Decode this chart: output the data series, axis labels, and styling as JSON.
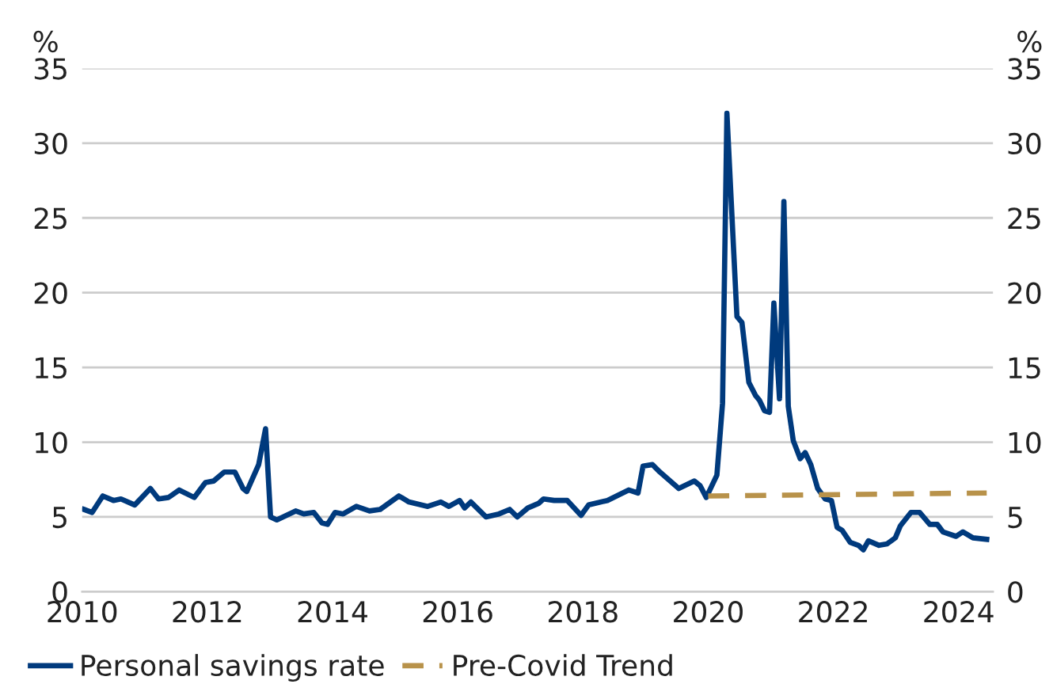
{
  "chart_data": {
    "type": "line",
    "ylabel": "%",
    "y2label": "%",
    "xlim": [
      2010,
      2024.55
    ],
    "xticks": [
      2010,
      2012,
      2014,
      2016,
      2018,
      2020,
      2022,
      2024
    ],
    "ylim": [
      0,
      35
    ],
    "yticks": [
      0,
      5,
      10,
      15,
      20,
      25,
      30,
      35
    ],
    "y2lim": [
      0,
      35
    ],
    "y2ticks": [
      0,
      5,
      10,
      15,
      20,
      25,
      30,
      35
    ],
    "grid": "y",
    "legend": "bottom left",
    "series": [
      {
        "name": "Personal savings rate",
        "color": "#003a7d",
        "line_style": "solid",
        "x": [
          2010.03,
          2010.16,
          2010.33,
          2010.5,
          2010.62,
          2010.84,
          2011.09,
          2011.22,
          2011.38,
          2011.55,
          2011.79,
          2011.97,
          2012.1,
          2012.27,
          2012.44,
          2012.57,
          2012.63,
          2012.82,
          2012.93,
          2013.01,
          2013.11,
          2013.41,
          2013.54,
          2013.7,
          2013.83,
          2013.92,
          2014.04,
          2014.17,
          2014.38,
          2014.59,
          2014.76,
          2015.06,
          2015.22,
          2015.52,
          2015.73,
          2015.86,
          2016.03,
          2016.11,
          2016.21,
          2016.45,
          2016.66,
          2016.83,
          2016.95,
          2017.12,
          2017.29,
          2017.37,
          2017.54,
          2017.75,
          2017.97,
          2018.09,
          2018.39,
          2018.73,
          2018.88,
          2018.96,
          2019.11,
          2019.23,
          2019.53,
          2019.78,
          2019.87,
          2019.97,
          2020.14,
          2020.23,
          2020.3,
          2020.41,
          2020.46,
          2020.54,
          2020.65,
          2020.76,
          2020.82,
          2020.9,
          2020.98,
          2021.05,
          2021.14,
          2021.21,
          2021.28,
          2021.36,
          2021.47,
          2021.55,
          2021.64,
          2021.75,
          2021.87,
          2021.97,
          2022.06,
          2022.14,
          2022.27,
          2022.4,
          2022.48,
          2022.56,
          2022.73,
          2022.86,
          2022.99,
          2023.07,
          2023.24,
          2023.38,
          2023.54,
          2023.66,
          2023.75,
          2023.96,
          2024.07,
          2024.23,
          2024.45
        ],
        "values": [
          5.5,
          5.3,
          6.4,
          6.1,
          6.2,
          5.8,
          6.9,
          6.2,
          6.3,
          6.8,
          6.3,
          7.3,
          7.4,
          8.0,
          8.0,
          6.9,
          6.7,
          8.5,
          10.9,
          5.0,
          4.8,
          5.4,
          5.2,
          5.3,
          4.6,
          4.5,
          5.3,
          5.2,
          5.7,
          5.4,
          5.5,
          6.4,
          6.0,
          5.7,
          6.0,
          5.7,
          6.1,
          5.6,
          6.0,
          5.0,
          5.2,
          5.5,
          5.0,
          5.6,
          5.9,
          6.2,
          6.1,
          6.1,
          5.1,
          5.8,
          6.1,
          6.8,
          6.6,
          8.4,
          8.5,
          8.0,
          6.9,
          7.4,
          7.1,
          6.3,
          7.8,
          12.6,
          32.0,
          22.6,
          18.4,
          18.0,
          14.0,
          13.1,
          12.8,
          12.1,
          12.0,
          19.3,
          12.9,
          26.1,
          12.4,
          10.1,
          8.9,
          9.3,
          8.5,
          6.9,
          6.2,
          6.1,
          4.3,
          4.1,
          3.3,
          3.1,
          2.8,
          3.4,
          3.1,
          3.2,
          3.6,
          4.4,
          5.3,
          5.3,
          4.5,
          4.5,
          4.0,
          3.7,
          4.0,
          3.6,
          3.5
        ]
      },
      {
        "name": "Pre-Covid Trend",
        "color": "#b8924a",
        "line_style": "dashed",
        "x": [
          2020.0,
          2024.45
        ],
        "values": [
          6.4,
          6.6
        ]
      }
    ]
  }
}
